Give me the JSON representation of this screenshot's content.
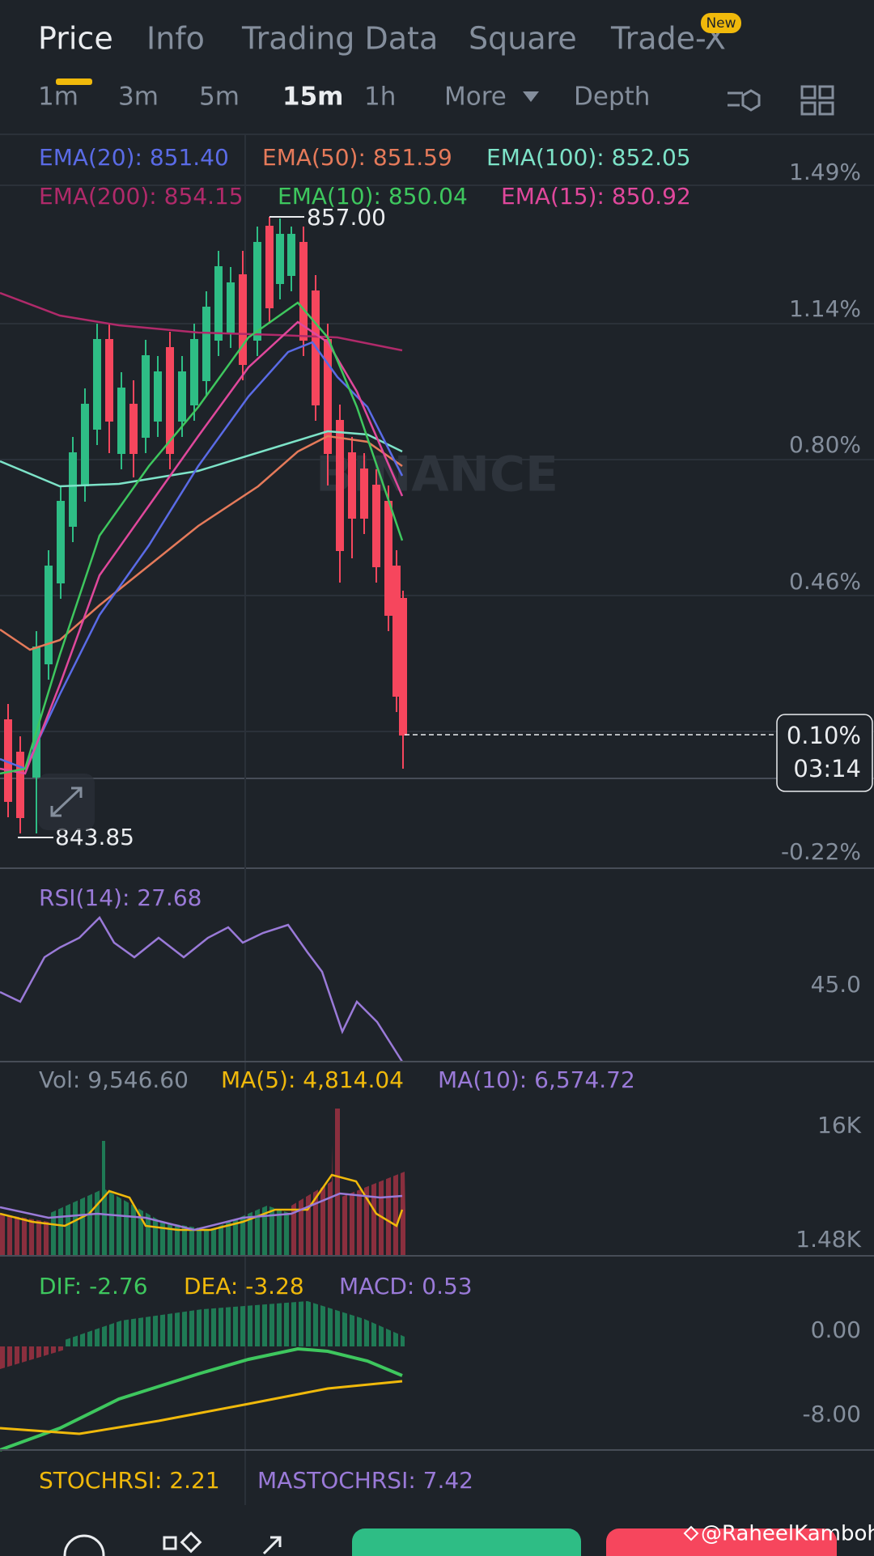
{
  "tabs": [
    "Price",
    "Info",
    "Trading Data",
    "Square",
    "Trade-X"
  ],
  "new_badge": "New",
  "intervals": [
    "1m",
    "3m",
    "5m",
    "15m",
    "1h"
  ],
  "more": "More",
  "depth": "Depth",
  "ema_legend": [
    "EMA(20): 851.40",
    "EMA(50): 851.59",
    "EMA(100): 852.05",
    "EMA(200): 854.15",
    "EMA(10): 850.04",
    "EMA(15): 850.92"
  ],
  "price_axis": [
    "1.49%",
    "1.14%",
    "0.80%",
    "0.46%",
    "-0.22%"
  ],
  "current_price": {
    "change": "0.10%",
    "countdown": "03:14"
  },
  "high_label": "857.00",
  "low_label": "843.85",
  "watermark": "BINANCE",
  "rsi": {
    "legend": "RSI(14): 27.68",
    "axis": [
      "45.0"
    ]
  },
  "volume": {
    "legend": [
      "Vol: 9,546.60",
      "MA(5): 4,814.04",
      "MA(10): 6,574.72"
    ],
    "axis": [
      "16K",
      "1.48K"
    ]
  },
  "macd": {
    "legend": [
      "DIF: -2.76",
      "DEA: -3.28",
      "MACD: 0.53"
    ],
    "axis": [
      "0.00",
      "-8.00"
    ]
  },
  "stochrsi": {
    "legend": [
      "STOCHRSI: 2.21",
      "MASTOCHRSI: 7.42"
    ]
  },
  "credit": "@RaheelKamboh"
}
